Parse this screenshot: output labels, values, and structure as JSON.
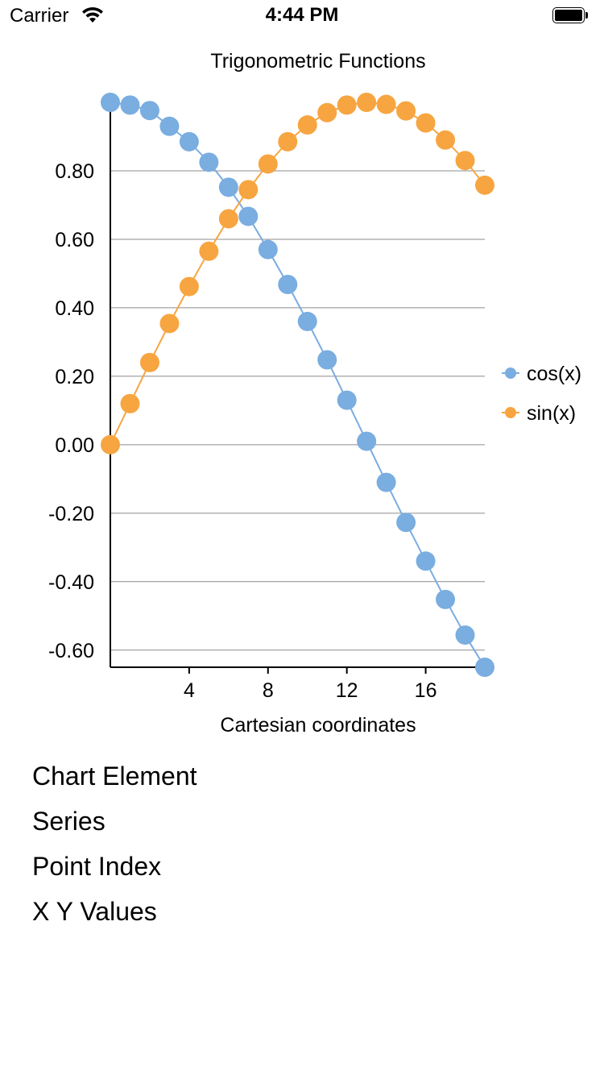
{
  "status_bar": {
    "carrier": "Carrier",
    "time": "4:44 PM",
    "wifi_icon": "wifi-icon",
    "battery_icon": "battery-icon"
  },
  "chart_data": {
    "type": "line",
    "title": "Trigonometric Functions",
    "xlabel": "Cartesian coordinates",
    "ylabel": "",
    "xlim": [
      0,
      19
    ],
    "ylim": [
      -0.65,
      1.0
    ],
    "x_ticks": [
      4,
      8,
      12,
      16
    ],
    "x_tick_labels": [
      "4",
      "8",
      "12",
      "16"
    ],
    "y_ticks": [
      -0.6,
      -0.4,
      -0.2,
      0.0,
      0.2,
      0.4,
      0.6,
      0.8
    ],
    "y_tick_labels": [
      "-0.60",
      "-0.40",
      "-0.20",
      "0.00",
      "0.20",
      "0.40",
      "0.60",
      "0.80"
    ],
    "grid": true,
    "legend_position": "right",
    "x": [
      0,
      1,
      2,
      3,
      4,
      5,
      6,
      7,
      8,
      9,
      10,
      11,
      12,
      13,
      14,
      15,
      16,
      17,
      18,
      19
    ],
    "series": [
      {
        "name": "cos(x)",
        "color": "#7aade0",
        "values": [
          1.0,
          0.992,
          0.976,
          0.93,
          0.885,
          0.825,
          0.752,
          0.667,
          0.57,
          0.468,
          0.36,
          0.248,
          0.13,
          0.01,
          -0.11,
          -0.227,
          -0.34,
          -0.452,
          -0.556,
          -0.65
        ]
      },
      {
        "name": "sin(x)",
        "color": "#f7a541",
        "values": [
          0.0,
          0.12,
          0.24,
          0.354,
          0.462,
          0.565,
          0.66,
          0.745,
          0.82,
          0.885,
          0.934,
          0.97,
          0.992,
          1.0,
          0.994,
          0.975,
          0.94,
          0.89,
          0.83,
          0.758
        ]
      }
    ]
  },
  "info": {
    "chart_element": "Chart Element",
    "series": "Series",
    "point_index": "Point Index",
    "xy_values": "X Y Values"
  }
}
